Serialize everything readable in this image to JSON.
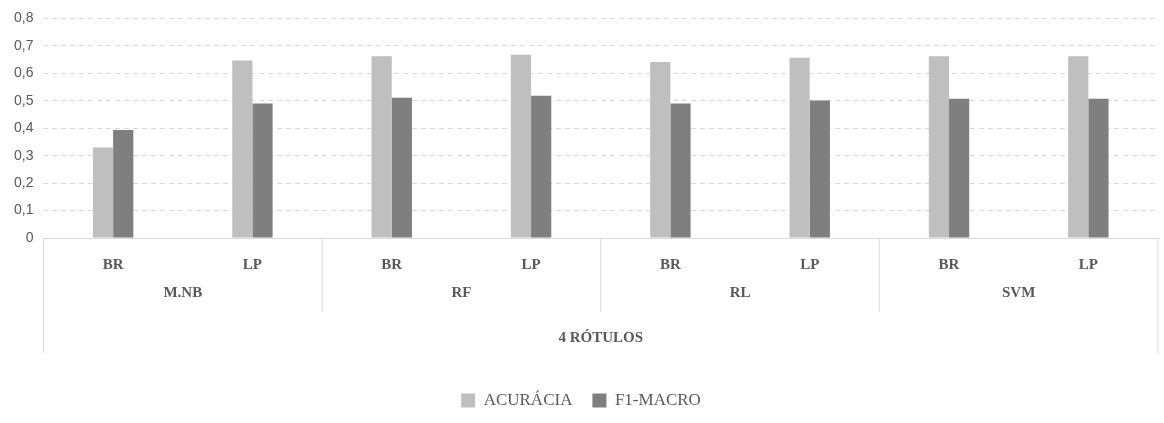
{
  "chart_data": {
    "type": "bar",
    "categories": [
      "BR",
      "LP",
      "BR",
      "LP",
      "BR",
      "LP",
      "BR",
      "LP"
    ],
    "series": [
      {
        "name": "ACURÁCIA",
        "color": "#bfbfbf",
        "values": [
          0.33,
          0.647,
          0.662,
          0.668,
          0.641,
          0.657,
          0.662,
          0.662
        ]
      },
      {
        "name": "F1-MACRO",
        "color": "#7f7f7f",
        "values": [
          0.393,
          0.49,
          0.511,
          0.518,
          0.49,
          0.501,
          0.507,
          0.507
        ]
      }
    ],
    "annotations": [
      "M.NB",
      "RF",
      "RL",
      "SVM",
      "4 RÓTULOS"
    ],
    "ylim": [
      0,
      0.8
    ],
    "yticks": [
      0,
      {
        "value": 0.1,
        "label": "0,1"
      },
      {
        "value": 0.2,
        "label": "0,2"
      },
      {
        "value": 0.3,
        "label": "0,3"
      },
      {
        "value": 0.4,
        "label": "0,4"
      },
      {
        "value": 0.5,
        "label": "0,5"
      },
      {
        "value": 0.6,
        "label": "0,6"
      },
      {
        "value": 0.7,
        "label": "0,7"
      },
      {
        "value": 0.8,
        "label": "0,8"
      }
    ],
    "grid": "y",
    "legend": "bottom"
  }
}
